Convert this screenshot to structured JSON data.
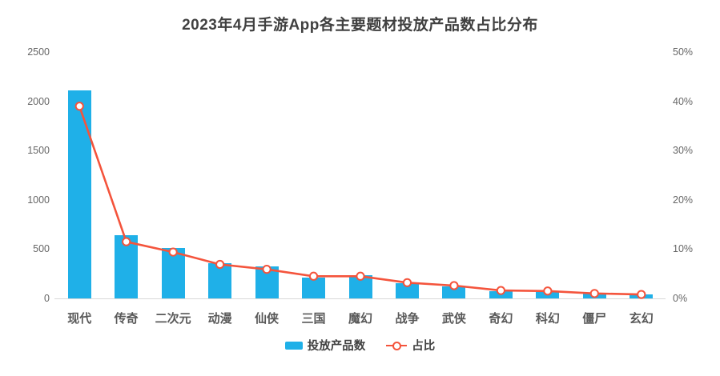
{
  "chart_data": {
    "type": "combo-bar-line",
    "title": "2023年4月手游App各主要题材投放产品数占比分布",
    "categories": [
      "现代",
      "传奇",
      "二次元",
      "动漫",
      "仙侠",
      "三国",
      "魔幻",
      "战争",
      "武侠",
      "奇幻",
      "科幻",
      "僵尸",
      "玄幻"
    ],
    "series": [
      {
        "name": "投放产品数",
        "type": "bar",
        "axis": "left",
        "values": [
          2110,
          640,
          515,
          360,
          325,
          210,
          235,
          158,
          125,
          70,
          68,
          45,
          44
        ]
      },
      {
        "name": "占比",
        "type": "line",
        "axis": "right",
        "values": [
          39.0,
          11.5,
          9.4,
          6.9,
          5.9,
          4.5,
          4.5,
          3.2,
          2.6,
          1.6,
          1.5,
          1.0,
          0.8
        ]
      }
    ],
    "left_axis": {
      "min": 0,
      "max": 2500,
      "ticks": [
        "0",
        "500",
        "1000",
        "1500",
        "2000",
        "2500"
      ]
    },
    "right_axis": {
      "min": 0,
      "max": 50,
      "ticks": [
        "0%",
        "10%",
        "20%",
        "30%",
        "40%",
        "50%"
      ]
    },
    "legend_position": "bottom",
    "gridlines": false,
    "colors": {
      "bar": "#1FB0E8",
      "line": "#F4543C",
      "marker_fill": "#FFFFFF",
      "axis_text": "#666666",
      "category_text": "#595959",
      "title_text": "#404040",
      "baseline": "#D9D9D9"
    }
  }
}
